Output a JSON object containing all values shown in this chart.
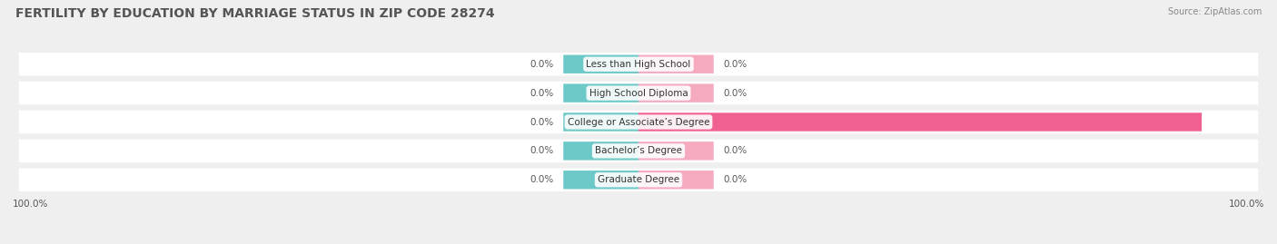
{
  "title": "FERTILITY BY EDUCATION BY MARRIAGE STATUS IN ZIP CODE 28274",
  "source": "Source: ZipAtlas.com",
  "categories": [
    "Less than High School",
    "High School Diploma",
    "College or Associate’s Degree",
    "Bachelor’s Degree",
    "Graduate Degree"
  ],
  "married_values": [
    0.0,
    0.0,
    0.0,
    0.0,
    0.0
  ],
  "unmarried_values": [
    0.0,
    0.0,
    100.0,
    0.0,
    0.0
  ],
  "married_color": "#6dc8c8",
  "unmarried_color": "#f06090",
  "unmarried_small_color": "#f5aac0",
  "bg_color": "#efefef",
  "title_fontsize": 10,
  "label_fontsize": 7.5,
  "legend_fontsize": 8.5,
  "bar_height": 0.62,
  "figsize": [
    14.06,
    2.69
  ],
  "dpi": 100,
  "max_val": 100,
  "left_axis_label": "100.0%",
  "right_axis_label": "100.0%"
}
